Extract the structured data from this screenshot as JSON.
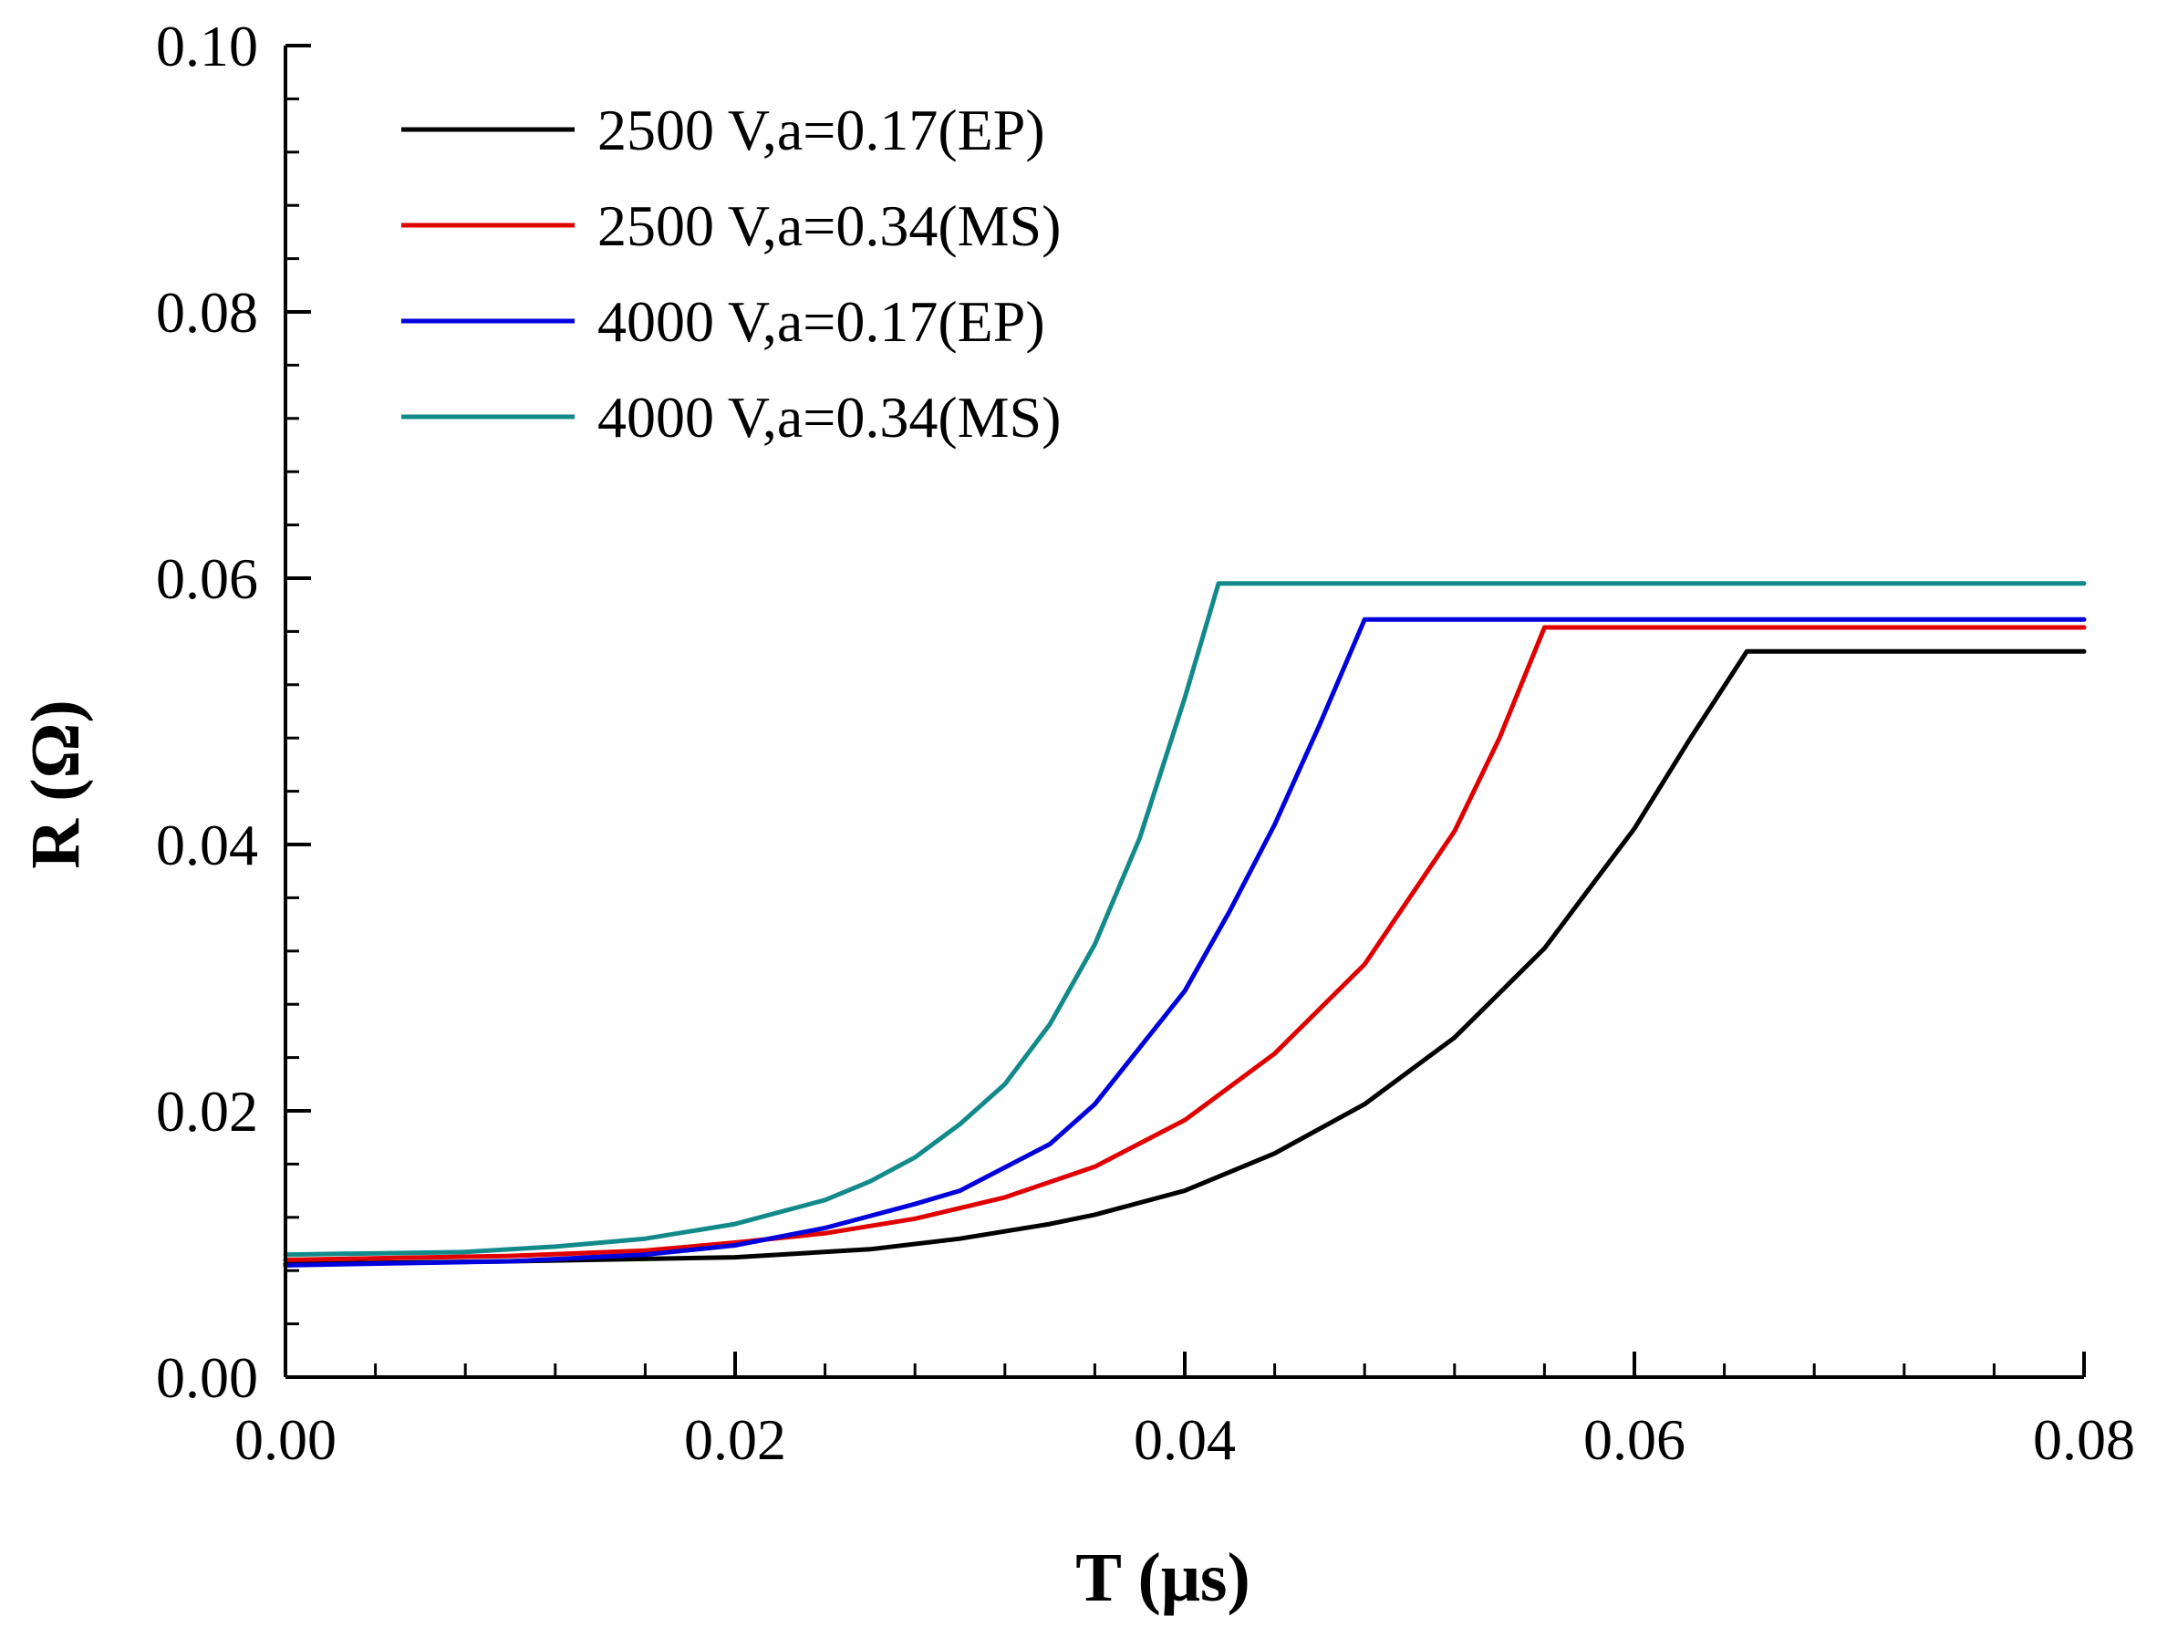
{
  "chart_data": {
    "type": "line",
    "title": "",
    "xlabel": "T (μs)",
    "ylabel": "R (Ω)",
    "xlim": [
      0,
      0.08
    ],
    "ylim": [
      0,
      0.1
    ],
    "xticks": [
      0.0,
      0.02,
      0.04,
      0.06,
      0.08
    ],
    "xtick_labels": [
      "0.00",
      "0.02",
      "0.04",
      "0.06",
      "0.08"
    ],
    "yticks": [
      0.0,
      0.02,
      0.04,
      0.06,
      0.08,
      0.1
    ],
    "ytick_labels": [
      "0.00",
      "0.02",
      "0.04",
      "0.06",
      "0.08",
      "0.10"
    ],
    "x_minor_step": 0.004,
    "y_minor_step": 0.004,
    "grid": false,
    "legend_position": "top-left",
    "series": [
      {
        "name": "2500 V,a=0.17(EP)",
        "color": "#000000",
        "x": [
          0,
          0.01,
          0.02,
          0.026,
          0.03,
          0.034,
          0.036,
          0.04,
          0.044,
          0.048,
          0.052,
          0.056,
          0.06,
          0.0625,
          0.065,
          0.08
        ],
        "y": [
          0.0085,
          0.0087,
          0.009,
          0.0096,
          0.0104,
          0.0115,
          0.0122,
          0.014,
          0.0168,
          0.0205,
          0.0255,
          0.0322,
          0.0412,
          0.048,
          0.0545,
          0.0545
        ]
      },
      {
        "name": "2500 V,a=0.34(MS)",
        "color": "#e00000",
        "x": [
          0,
          0.01,
          0.016,
          0.02,
          0.024,
          0.028,
          0.032,
          0.036,
          0.04,
          0.044,
          0.048,
          0.052,
          0.054,
          0.056,
          0.08
        ],
        "y": [
          0.0088,
          0.0091,
          0.0095,
          0.0101,
          0.0108,
          0.0119,
          0.0135,
          0.0158,
          0.0193,
          0.0243,
          0.031,
          0.041,
          0.048,
          0.0563,
          0.0563
        ]
      },
      {
        "name": "4000 V,a=0.17(EP)",
        "color": "#0000dd",
        "x": [
          0,
          0.01,
          0.016,
          0.02,
          0.024,
          0.028,
          0.03,
          0.034,
          0.036,
          0.04,
          0.042,
          0.044,
          0.046,
          0.048,
          0.08
        ],
        "y": [
          0.0084,
          0.0087,
          0.0092,
          0.0099,
          0.0112,
          0.013,
          0.014,
          0.0175,
          0.0205,
          0.029,
          0.035,
          0.0415,
          0.049,
          0.0569,
          0.0569
        ]
      },
      {
        "name": "4000 V,a=0.34(MS)",
        "color": "#138a8a",
        "x": [
          0,
          0.008,
          0.012,
          0.016,
          0.02,
          0.024,
          0.026,
          0.028,
          0.03,
          0.032,
          0.034,
          0.036,
          0.038,
          0.04,
          0.0415,
          0.08
        ],
        "y": [
          0.0092,
          0.0094,
          0.0098,
          0.0104,
          0.0115,
          0.0133,
          0.0147,
          0.0165,
          0.019,
          0.022,
          0.0265,
          0.0325,
          0.0405,
          0.051,
          0.0596,
          0.0596
        ]
      }
    ]
  }
}
